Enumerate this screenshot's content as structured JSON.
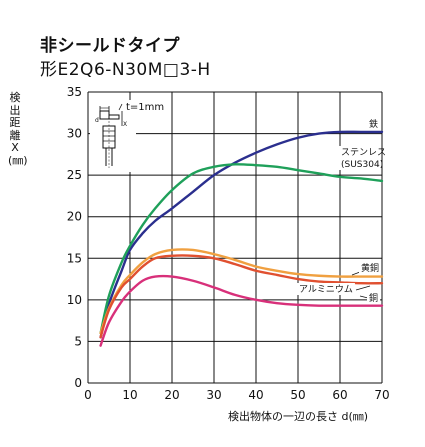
{
  "header": {
    "title": "非シールドタイプ",
    "model": "形E2Q6-N30M□3-H"
  },
  "chart_data": {
    "type": "line",
    "title": "非シールドタイプ",
    "subtitle": "形E2Q6-N30M□3-H",
    "ylabel": "検出距離X(㎜)",
    "xlabel": "検出物体の一辺の長さ d(㎜)",
    "xlim": [
      0,
      70
    ],
    "ylim": [
      0,
      35
    ],
    "xticks": [
      0,
      10,
      20,
      30,
      40,
      50,
      60,
      70
    ],
    "yticks": [
      0,
      5,
      10,
      15,
      20,
      25,
      30,
      35
    ],
    "grid": true,
    "inset_label": "t=1mm",
    "series": [
      {
        "name": "鉄",
        "color": "#2b2f8e",
        "x": [
          3,
          5,
          8,
          10,
          13,
          16,
          20,
          25,
          30,
          35,
          40,
          45,
          50,
          55,
          60,
          65,
          70
        ],
        "y": [
          5.5,
          9.5,
          13.5,
          16,
          18,
          19.5,
          21,
          23,
          25,
          26.5,
          27.7,
          28.7,
          29.5,
          30,
          30.2,
          30.2,
          30.2
        ]
      },
      {
        "name": "ステンレス(SUS304)",
        "color": "#1fa05a",
        "x": [
          3,
          5,
          8,
          10,
          13,
          16,
          20,
          25,
          30,
          35,
          40,
          45,
          50,
          55,
          60,
          65,
          70
        ],
        "y": [
          6,
          10.5,
          14.5,
          16.5,
          19,
          21,
          23.2,
          25.2,
          26,
          26.3,
          26.2,
          26,
          25.6,
          25.2,
          24.8,
          24.6,
          24.3
        ]
      },
      {
        "name": "黄銅",
        "color": "#f0a040",
        "x": [
          3,
          5,
          8,
          10,
          13,
          16,
          20,
          25,
          30,
          35,
          40,
          45,
          50,
          55,
          60,
          65,
          70
        ],
        "y": [
          6,
          9,
          11.8,
          13,
          14.5,
          15.5,
          16,
          16,
          15.5,
          14.8,
          14,
          13.5,
          13.1,
          12.9,
          12.8,
          12.8,
          12.8
        ]
      },
      {
        "name": "アルミニウム",
        "color": "#e05030",
        "x": [
          3,
          5,
          8,
          10,
          13,
          16,
          20,
          25,
          30,
          35,
          40,
          45,
          50,
          55,
          60,
          65,
          70
        ],
        "y": [
          5.5,
          8.8,
          11.5,
          12.5,
          14,
          15,
          15.3,
          15.3,
          15,
          14.3,
          13.5,
          13,
          12.5,
          12.2,
          12.1,
          12,
          12
        ]
      },
      {
        "name": "銅",
        "color": "#d8307a",
        "x": [
          3,
          5,
          8,
          10,
          13,
          16,
          20,
          25,
          30,
          35,
          40,
          45,
          50,
          55,
          60,
          65,
          70
        ],
        "y": [
          4.5,
          7.3,
          9.8,
          11,
          12.3,
          12.8,
          12.8,
          12.3,
          11.5,
          10.6,
          10,
          9.6,
          9.4,
          9.3,
          9.3,
          9.3,
          9.3
        ]
      }
    ]
  }
}
